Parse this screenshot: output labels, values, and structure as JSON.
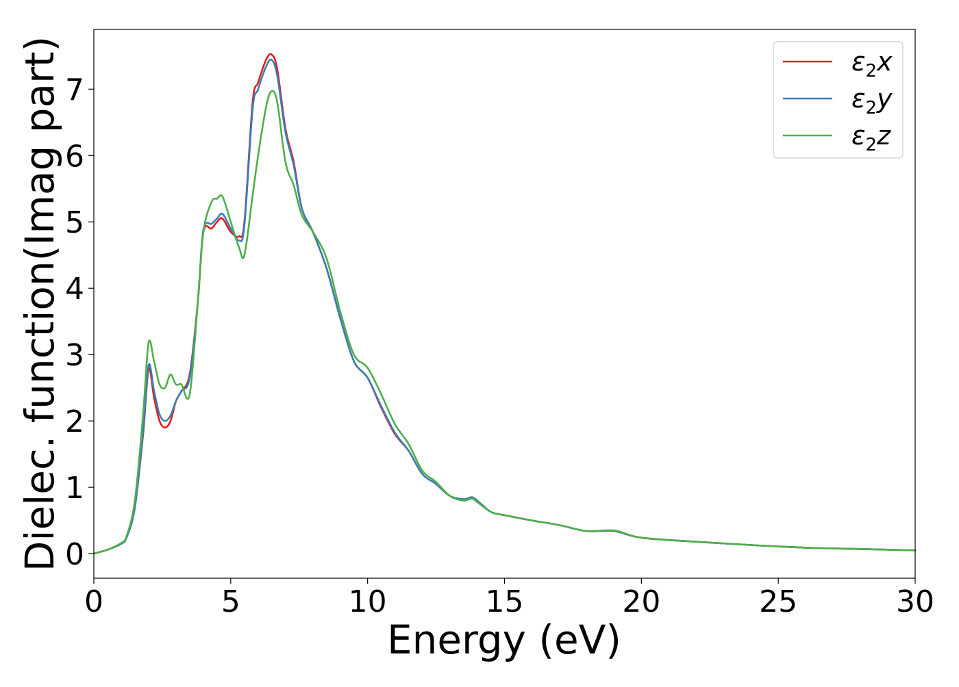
{
  "chart_data": {
    "type": "line",
    "title": "",
    "xlabel": "Energy (eV)",
    "ylabel": "Dielec. function(Imag part)",
    "xlim": [
      0,
      30
    ],
    "ylim": [
      -0.37,
      7.9
    ],
    "xticks": [
      "0",
      "5",
      "10",
      "15",
      "20",
      "25",
      "30"
    ],
    "yticks": [
      "0",
      "1",
      "2",
      "3",
      "4",
      "5",
      "6",
      "7"
    ],
    "grid": false,
    "legend_position": "top-right",
    "series": [
      {
        "name": "ε₂x",
        "legend": {
          "symbol": "ε",
          "sub": "2",
          "axis": "x"
        },
        "color": "#e41a1c",
        "x": [
          0,
          0.5,
          1.0,
          1.2,
          1.5,
          1.8,
          2.0,
          2.2,
          2.4,
          2.6,
          2.8,
          3.0,
          3.2,
          3.5,
          3.8,
          4.0,
          4.3,
          4.5,
          4.7,
          5.0,
          5.3,
          5.5,
          5.8,
          6.0,
          6.3,
          6.5,
          6.7,
          7.0,
          7.3,
          7.6,
          8.0,
          8.5,
          9.0,
          9.5,
          10.0,
          10.5,
          11.0,
          11.5,
          12.0,
          12.5,
          13.0,
          13.5,
          13.8,
          14.0,
          14.5,
          15.0,
          16.0,
          17.0,
          18.0,
          19.0,
          20.0,
          22.0,
          24.0,
          26.0,
          28.0,
          30.0
        ],
        "values": [
          0.0,
          0.06,
          0.15,
          0.25,
          0.7,
          1.8,
          2.78,
          2.35,
          2.0,
          1.9,
          2.0,
          2.3,
          2.45,
          2.7,
          3.8,
          4.85,
          4.9,
          5.0,
          5.05,
          4.85,
          4.78,
          5.0,
          6.8,
          7.1,
          7.45,
          7.52,
          7.3,
          6.4,
          5.9,
          5.2,
          4.85,
          4.3,
          3.55,
          2.9,
          2.65,
          2.2,
          1.8,
          1.55,
          1.2,
          1.05,
          0.87,
          0.82,
          0.85,
          0.8,
          0.63,
          0.58,
          0.5,
          0.43,
          0.34,
          0.34,
          0.24,
          0.18,
          0.13,
          0.09,
          0.07,
          0.05
        ]
      },
      {
        "name": "ε₂y",
        "legend": {
          "symbol": "ε",
          "sub": "2",
          "axis": "y"
        },
        "color": "#377eb8",
        "x": [
          0,
          0.5,
          1.0,
          1.2,
          1.5,
          1.8,
          2.0,
          2.2,
          2.4,
          2.6,
          2.8,
          3.0,
          3.2,
          3.5,
          3.8,
          4.0,
          4.3,
          4.5,
          4.7,
          5.0,
          5.3,
          5.5,
          5.8,
          6.0,
          6.3,
          6.5,
          6.7,
          7.0,
          7.3,
          7.6,
          8.0,
          8.5,
          9.0,
          9.5,
          10.0,
          10.5,
          11.0,
          11.5,
          12.0,
          12.5,
          13.0,
          13.5,
          13.8,
          14.0,
          14.5,
          15.0,
          16.0,
          17.0,
          18.0,
          19.0,
          20.0,
          22.0,
          24.0,
          26.0,
          28.0,
          30.0
        ],
        "values": [
          0.0,
          0.06,
          0.15,
          0.25,
          0.7,
          1.85,
          2.84,
          2.45,
          2.1,
          2.0,
          2.08,
          2.3,
          2.45,
          2.65,
          3.8,
          4.88,
          4.97,
          5.05,
          5.12,
          4.9,
          4.72,
          4.95,
          6.7,
          7.0,
          7.35,
          7.44,
          7.2,
          6.35,
          5.85,
          5.2,
          4.85,
          4.3,
          3.55,
          2.9,
          2.65,
          2.22,
          1.82,
          1.55,
          1.2,
          1.05,
          0.87,
          0.82,
          0.85,
          0.8,
          0.63,
          0.58,
          0.5,
          0.43,
          0.34,
          0.34,
          0.24,
          0.18,
          0.13,
          0.09,
          0.07,
          0.05
        ]
      },
      {
        "name": "ε₂z",
        "legend": {
          "symbol": "ε",
          "sub": "2",
          "axis": "z"
        },
        "color": "#4daf4a",
        "x": [
          0,
          0.5,
          1.0,
          1.2,
          1.5,
          1.8,
          2.0,
          2.2,
          2.4,
          2.6,
          2.8,
          3.0,
          3.2,
          3.5,
          3.8,
          4.0,
          4.3,
          4.5,
          4.7,
          5.0,
          5.3,
          5.5,
          5.8,
          6.0,
          6.3,
          6.5,
          6.7,
          7.0,
          7.3,
          7.6,
          8.0,
          8.5,
          9.0,
          9.5,
          10.0,
          10.5,
          11.0,
          11.5,
          12.0,
          12.5,
          13.0,
          13.5,
          13.8,
          14.0,
          14.5,
          15.0,
          16.0,
          17.0,
          18.0,
          19.0,
          20.0,
          22.0,
          24.0,
          26.0,
          28.0,
          30.0
        ],
        "values": [
          0.0,
          0.06,
          0.16,
          0.27,
          0.8,
          2.1,
          3.18,
          2.9,
          2.55,
          2.5,
          2.7,
          2.55,
          2.55,
          2.4,
          3.8,
          4.85,
          5.3,
          5.35,
          5.38,
          5.0,
          4.62,
          4.5,
          5.4,
          6.0,
          6.75,
          6.97,
          6.8,
          5.9,
          5.55,
          5.1,
          4.85,
          4.45,
          3.65,
          3.0,
          2.8,
          2.4,
          1.95,
          1.65,
          1.25,
          1.08,
          0.87,
          0.8,
          0.83,
          0.78,
          0.63,
          0.58,
          0.5,
          0.43,
          0.34,
          0.35,
          0.24,
          0.18,
          0.13,
          0.09,
          0.07,
          0.05
        ]
      }
    ]
  }
}
